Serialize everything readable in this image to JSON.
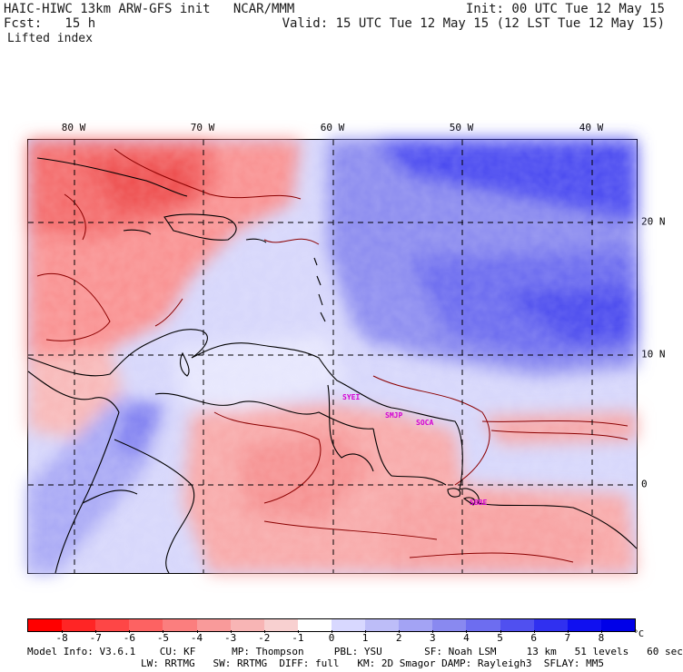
{
  "header": {
    "line1_left": "HAIC-HIWC 13km ARW-GFS init   NCAR/MMM",
    "line1_right": "Init: 00 UTC Tue 12 May 15",
    "line2_left": "Fcst:   15 h",
    "line2_right": "Valid: 15 UTC Tue 12 May 15 (12 LST Tue 12 May 15)",
    "field_name": "Lifted index"
  },
  "map": {
    "lon_labels": [
      "80 W",
      "70 W",
      "60 W",
      "50 W",
      "40 W"
    ],
    "lat_labels": [
      "20 N",
      "10 N",
      "0"
    ],
    "stations": [
      "SYEI",
      "SMJP",
      "SOCA",
      "SBBE"
    ]
  },
  "colorbar": {
    "colors": [
      "#ff0000",
      "#ff2525",
      "#fe4646",
      "#fd6262",
      "#fb7e7e",
      "#f99a9a",
      "#f8b5b5",
      "#f8d0d0",
      "#ffffff",
      "#d8d8ff",
      "#bdbdf8",
      "#a3a3f4",
      "#8989f0",
      "#6d6df0",
      "#5050f0",
      "#3030f0",
      "#1010f0",
      "#0000e8"
    ],
    "labels": [
      "-8",
      "-7",
      "-6",
      "-5",
      "-4",
      "-3",
      "-2",
      "-1",
      "0",
      "1",
      "2",
      "3",
      "4",
      "5",
      "6",
      "7",
      "8"
    ],
    "unit": "°C"
  },
  "model_info": {
    "line1": "Model Info: V3.6.1    CU: KF      MP: Thompson     PBL: YSU       SF: Noah LSM     13 km   51 levels   60 sec",
    "line2": "LW: RRTMG   SW: RRTMG  DIFF: full   KM: 2D Smagor DAMP: Rayleigh3  SFLAY: MM5"
  }
}
